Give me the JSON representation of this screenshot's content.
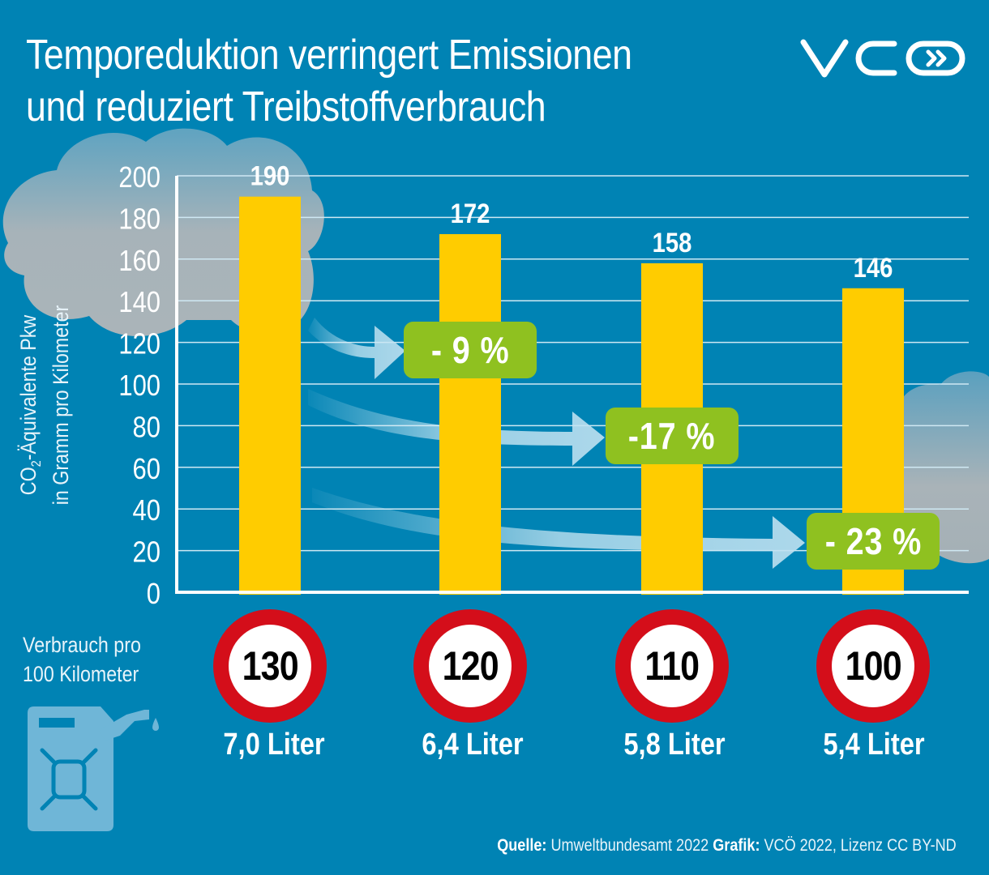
{
  "header": {
    "title_line1": "Temporeduktion verringert Emissionen",
    "title_line2": "und reduziert Treibstoffverbrauch",
    "logo_text": "VCÖ"
  },
  "colors": {
    "background": "#0083b4",
    "bar": "#ffcc00",
    "badge": "#8fc120",
    "sign_ring": "#d40e1a",
    "cloud": "#a9b3b8",
    "text": "#ffffff"
  },
  "chart_data": {
    "type": "bar",
    "title": "Temporeduktion verringert Emissionen und reduziert Treibstoffverbrauch",
    "ylabel_line1_prefix": "CO",
    "ylabel_line1_sub": "2",
    "ylabel_line1_suffix": "-Äquivalente Pkw",
    "ylabel_line2": "in Gramm pro Kilometer",
    "xlabel": "",
    "ylim": [
      0,
      200
    ],
    "yticks": [
      0,
      20,
      40,
      60,
      80,
      100,
      120,
      140,
      160,
      180,
      200
    ],
    "grid": true,
    "categories": [
      "130",
      "120",
      "110",
      "100"
    ],
    "values": [
      190,
      172,
      158,
      146
    ],
    "value_labels": [
      "190",
      "172",
      "158",
      "146"
    ],
    "reductions": [
      {
        "label": "- 9 %",
        "from": "130",
        "to": "120"
      },
      {
        "label": "-17 %",
        "from": "130",
        "to": "110"
      },
      {
        "label": "- 23 %",
        "from": "130",
        "to": "100"
      }
    ]
  },
  "speed_limits": [
    {
      "speed": "130",
      "consumption": "7,0 Liter"
    },
    {
      "speed": "120",
      "consumption": "6,4 Liter"
    },
    {
      "speed": "110",
      "consumption": "5,8 Liter"
    },
    {
      "speed": "100",
      "consumption": "5,4 Liter"
    }
  ],
  "consumption_legend": {
    "line1": "Verbrauch pro",
    "line2": "100 Kilometer",
    "icon": "fuel-canister-icon"
  },
  "footer": {
    "source_label": "Quelle:",
    "source_value": "Umweltbundesamt 2022",
    "graphic_label": "Grafik:",
    "graphic_value": "VCÖ 2022, Lizenz CC BY-ND"
  }
}
